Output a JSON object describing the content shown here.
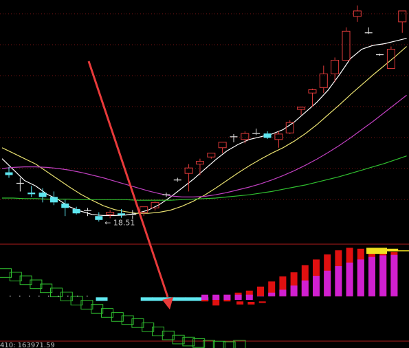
{
  "colors": {
    "background": "#000000",
    "grid": "#7a1414",
    "divider": "#b01c1c",
    "candle_up": "#e23b3b",
    "candle_down": "#5ee6f0",
    "doji": "#e8e8e8",
    "ma5": "#ffffff",
    "ma10": "#e8e070",
    "ma20": "#c040c0",
    "ma60": "#30c030",
    "arrow": "#e83a3a",
    "hist_up_outline": "#30c030",
    "hist_cyan": "#60e8f0",
    "hist_red": "#e01010",
    "hist_magenta": "#d020d0",
    "hist_yellow": "#f0e020"
  },
  "chart_data": [
    {
      "type": "candlestick",
      "title": "",
      "annotations": [
        {
          "text": "← 18.51",
          "index": 9
        }
      ],
      "ylim": [
        18.1,
        22.5
      ],
      "grid": true,
      "candles": [
        {
          "o": 19.35,
          "h": 19.45,
          "l": 19.25,
          "c": 19.3
        },
        {
          "o": 19.15,
          "h": 19.25,
          "l": 19.0,
          "c": 19.15
        },
        {
          "o": 18.98,
          "h": 19.1,
          "l": 18.9,
          "c": 18.95
        },
        {
          "o": 18.98,
          "h": 19.06,
          "l": 18.8,
          "c": 18.9
        },
        {
          "o": 18.9,
          "h": 19.0,
          "l": 18.75,
          "c": 18.8
        },
        {
          "o": 18.78,
          "h": 18.85,
          "l": 18.55,
          "c": 18.7
        },
        {
          "o": 18.68,
          "h": 18.72,
          "l": 18.58,
          "c": 18.6
        },
        {
          "o": 18.65,
          "h": 18.7,
          "l": 18.55,
          "c": 18.63
        },
        {
          "o": 18.55,
          "h": 18.62,
          "l": 18.45,
          "c": 18.48
        },
        {
          "o": 18.58,
          "h": 18.66,
          "l": 18.51,
          "c": 18.62
        },
        {
          "o": 18.6,
          "h": 18.68,
          "l": 18.52,
          "c": 18.57
        },
        {
          "o": 18.58,
          "h": 18.66,
          "l": 18.5,
          "c": 18.56
        },
        {
          "o": 18.62,
          "h": 18.72,
          "l": 18.55,
          "c": 18.72
        },
        {
          "o": 18.7,
          "h": 18.82,
          "l": 18.65,
          "c": 18.8
        },
        {
          "o": 18.93,
          "h": 18.98,
          "l": 18.9,
          "c": 18.94
        },
        {
          "o": 19.2,
          "h": 19.25,
          "l": 19.18,
          "c": 19.21
        },
        {
          "o": 19.33,
          "h": 19.5,
          "l": 19.0,
          "c": 19.43
        },
        {
          "o": 19.5,
          "h": 19.6,
          "l": 19.3,
          "c": 19.55
        },
        {
          "o": 19.63,
          "h": 19.7,
          "l": 19.6,
          "c": 19.7
        },
        {
          "o": 19.8,
          "h": 19.9,
          "l": 19.7,
          "c": 19.9
        },
        {
          "o": 19.99,
          "h": 20.05,
          "l": 19.9,
          "c": 20.0
        },
        {
          "o": 19.95,
          "h": 20.1,
          "l": 19.88,
          "c": 20.06
        },
        {
          "o": 20.05,
          "h": 20.15,
          "l": 20.03,
          "c": 20.06
        },
        {
          "o": 20.06,
          "h": 20.1,
          "l": 19.96,
          "c": 19.98
        },
        {
          "o": 19.95,
          "h": 20.1,
          "l": 19.8,
          "c": 20.05
        },
        {
          "o": 20.07,
          "h": 20.3,
          "l": 20.05,
          "c": 20.26
        },
        {
          "o": 20.5,
          "h": 20.55,
          "l": 20.4,
          "c": 20.54
        },
        {
          "o": 20.8,
          "h": 20.88,
          "l": 20.55,
          "c": 20.86
        },
        {
          "o": 20.9,
          "h": 21.3,
          "l": 20.8,
          "c": 21.15
        },
        {
          "o": 21.15,
          "h": 21.45,
          "l": 21.0,
          "c": 21.4
        },
        {
          "o": 21.4,
          "h": 22.0,
          "l": 21.4,
          "c": 21.93
        },
        {
          "o": 22.2,
          "h": 22.4,
          "l": 22.1,
          "c": 22.3
        },
        {
          "o": 21.9,
          "h": 22.0,
          "l": 21.88,
          "c": 21.9
        },
        {
          "o": 21.5,
          "h": 21.52,
          "l": 21.48,
          "c": 21.5
        },
        {
          "o": 21.25,
          "h": 21.65,
          "l": 21.25,
          "c": 21.6
        },
        {
          "o": 22.1,
          "h": 22.3,
          "l": 21.9,
          "c": 22.3
        },
        {
          "o": 22.5,
          "h": 22.55,
          "l": 22.3,
          "c": 22.5
        }
      ],
      "series": [
        {
          "values": [
            19.6,
            19.4,
            19.2,
            19.1,
            18.95,
            18.85,
            18.72,
            18.64,
            18.58,
            18.56,
            18.56,
            18.57,
            18.6,
            18.66,
            18.76,
            18.9,
            19.06,
            19.22,
            19.4,
            19.58,
            19.74,
            19.86,
            19.95,
            20.0,
            20.05,
            20.13,
            20.27,
            20.45,
            20.63,
            20.85,
            21.13,
            21.43,
            21.6,
            21.67,
            21.7,
            21.75,
            21.8
          ]
        },
        {
          "values": [
            19.8,
            19.7,
            19.6,
            19.5,
            19.36,
            19.22,
            19.08,
            18.95,
            18.84,
            18.74,
            18.67,
            18.63,
            18.6,
            18.6,
            18.62,
            18.66,
            18.73,
            18.82,
            18.93,
            19.06,
            19.2,
            19.34,
            19.47,
            19.59,
            19.7,
            19.8,
            19.92,
            20.06,
            20.22,
            20.4,
            20.58,
            20.77,
            20.95,
            21.13,
            21.3,
            21.47,
            21.65
          ]
        },
        {
          "values": [
            19.42,
            19.44,
            19.45,
            19.45,
            19.44,
            19.42,
            19.39,
            19.35,
            19.3,
            19.25,
            19.19,
            19.13,
            19.07,
            19.01,
            18.96,
            18.92,
            18.9,
            18.9,
            18.91,
            18.94,
            18.98,
            19.03,
            19.08,
            19.14,
            19.21,
            19.29,
            19.38,
            19.48,
            19.59,
            19.71,
            19.84,
            19.98,
            20.13,
            20.28,
            20.44,
            20.6,
            20.76
          ]
        },
        {
          "values": [
            18.88,
            18.88,
            18.87,
            18.87,
            18.86,
            18.86,
            18.86,
            18.85,
            18.85,
            18.85,
            18.85,
            18.85,
            18.84,
            18.84,
            18.84,
            18.84,
            18.85,
            18.86,
            18.87,
            18.88,
            18.9,
            18.92,
            18.94,
            18.97,
            19.0,
            19.04,
            19.08,
            19.12,
            19.17,
            19.22,
            19.27,
            19.33,
            19.39,
            19.45,
            19.51,
            19.58,
            19.65
          ]
        }
      ]
    },
    {
      "type": "bar",
      "footer_label": "410: 163971.59",
      "ylim": [
        -8.5,
        9.8
      ],
      "values": [
        5.4,
        4.7,
        4.0,
        3.2,
        2.4,
        1.6,
        0.8,
        0.0,
        -0.8,
        -1.6,
        -2.4,
        -3.2,
        -3.8,
        -4.4,
        -5.2,
        -6.0,
        -6.8,
        -7.6,
        -8.0,
        -8.3,
        -8.6,
        -8.8,
        -8.9,
        -8.6
      ],
      "cyan_bars": [
        [
          8,
          -0.2,
          -0.9
        ],
        [
          12,
          -0.2,
          -0.9
        ],
        [
          13,
          -0.2,
          -0.9
        ],
        [
          14,
          -0.2,
          -0.9
        ],
        [
          15,
          -0.2,
          -0.9
        ],
        [
          16,
          -0.2,
          -0.9
        ],
        [
          17,
          -0.2,
          -0.9
        ]
      ],
      "red_small": [
        [
          15,
          -1.0,
          -1.6
        ],
        [
          16,
          -1.1,
          -1.6
        ],
        [
          17,
          -1.0,
          -1.3
        ]
      ],
      "momentum": [
        {
          "hi": 0.0,
          "lo": -1.0,
          "mag_hi": 0.0
        },
        {
          "hi": 0.0,
          "lo": -1.8,
          "mag_hi": 0.0
        },
        {
          "hi": 0.3,
          "lo": -1.0,
          "mag_hi": 0.0
        },
        {
          "hi": 0.7,
          "lo": -0.4,
          "mag_hi": 0.0
        },
        {
          "hi": 1.1,
          "lo": 0.0,
          "mag_hi": 0.0
        },
        {
          "hi": 1.9,
          "lo": 0.0,
          "mag_hi": 0.1
        },
        {
          "hi": 2.9,
          "lo": 0.0,
          "mag_hi": 0.7
        },
        {
          "hi": 3.9,
          "lo": 0.0,
          "mag_hi": 1.3
        },
        {
          "hi": 4.7,
          "lo": 0.0,
          "mag_hi": 2.1
        },
        {
          "hi": 6.1,
          "lo": 0.0,
          "mag_hi": 3.1
        },
        {
          "hi": 7.2,
          "lo": 0.0,
          "mag_hi": 4.0
        },
        {
          "hi": 8.2,
          "lo": 0.0,
          "mag_hi": 5.0
        },
        {
          "hi": 9.0,
          "lo": 0.0,
          "mag_hi": 5.9
        },
        {
          "hi": 9.5,
          "lo": 0.0,
          "mag_hi": 6.6
        },
        {
          "hi": 9.3,
          "lo": 0.0,
          "mag_hi": 7.2
        },
        {
          "hi": 9.0,
          "lo": 0.0,
          "mag_hi": 7.7
        },
        {
          "hi": 8.9,
          "lo": 0.0,
          "mag_hi": 8.0
        },
        {
          "hi": 8.7,
          "lo": 0.0,
          "mag_hi": 8.1
        }
      ],
      "yellow_caps": [
        [
          15,
          9.5,
          8.3
        ],
        [
          16,
          9.3,
          8.8
        ],
        [
          17,
          9.0,
          8.8
        ]
      ]
    }
  ]
}
